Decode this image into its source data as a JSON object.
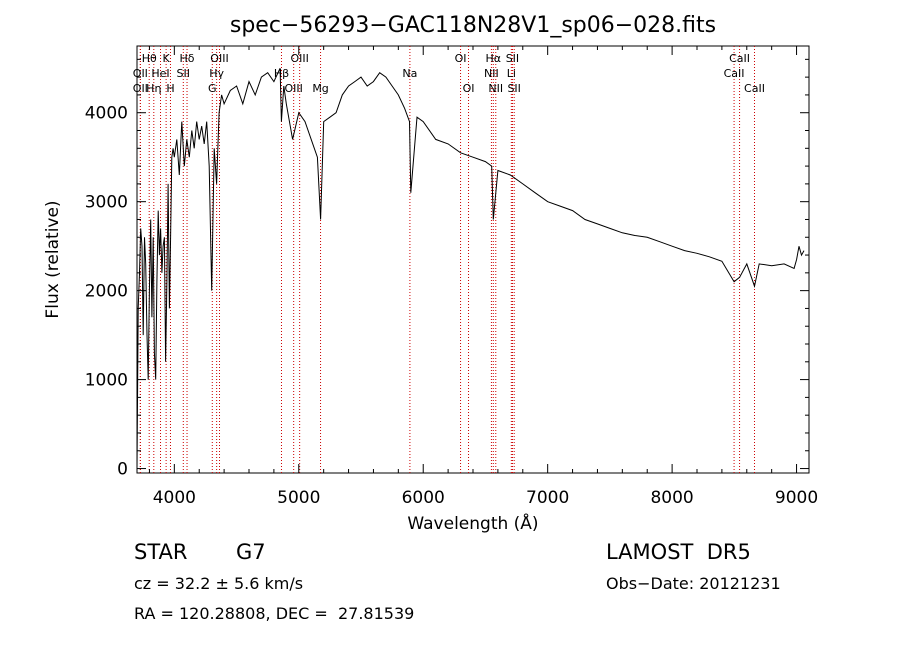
{
  "chart_data": {
    "type": "line",
    "title": "spec−56293−GAC118N28V1_sp06−028.fits",
    "xlabel": "Wavelength (Å)",
    "ylabel": "Flux (relative)",
    "xlim": [
      3700,
      9100
    ],
    "ylim": [
      -50,
      4750
    ],
    "xticks": [
      4000,
      5000,
      6000,
      7000,
      8000,
      9000
    ],
    "yticks": [
      0,
      1000,
      2000,
      3000,
      4000
    ],
    "grid": false,
    "line_color": "#000000",
    "marker_color": "#cc0000",
    "series": [
      {
        "x": [
          3700,
          3710,
          3720,
          3730,
          3740,
          3750,
          3760,
          3770,
          3780,
          3790,
          3800,
          3810,
          3820,
          3830,
          3840,
          3850,
          3860,
          3870,
          3880,
          3890,
          3900,
          3910,
          3920,
          3930,
          3940,
          3950,
          3960,
          3970,
          3980,
          3990,
          4000,
          4020,
          4040,
          4060,
          4080,
          4100,
          4120,
          4140,
          4160,
          4180,
          4200,
          4220,
          4240,
          4260,
          4280,
          4300,
          4320,
          4340,
          4360,
          4380,
          4400,
          4450,
          4500,
          4550,
          4600,
          4650,
          4700,
          4750,
          4800,
          4850,
          4860,
          4880,
          4900,
          4950,
          5000,
          5050,
          5100,
          5150,
          5175,
          5200,
          5250,
          5300,
          5350,
          5400,
          5450,
          5500,
          5550,
          5600,
          5650,
          5700,
          5750,
          5800,
          5850,
          5890,
          5900,
          5950,
          6000,
          6100,
          6200,
          6300,
          6400,
          6500,
          6550,
          6563,
          6600,
          6700,
          6800,
          6900,
          7000,
          7100,
          7200,
          7300,
          7400,
          7500,
          7600,
          7700,
          7800,
          7900,
          8000,
          8100,
          8200,
          8300,
          8400,
          8498,
          8542,
          8600,
          8662,
          8700,
          8800,
          8900,
          8980,
          9000,
          9020,
          9040,
          9060
        ],
        "y": [
          0,
          1800,
          2200,
          2700,
          2500,
          1500,
          2600,
          2300,
          1500,
          1000,
          2000,
          2800,
          1700,
          2600,
          1300,
          1000,
          2100,
          2900,
          2400,
          2700,
          2200,
          2500,
          2600,
          1200,
          2100,
          3200,
          1800,
          2600,
          3500,
          3600,
          3500,
          3700,
          3300,
          3900,
          3400,
          3700,
          3500,
          3800,
          3600,
          3900,
          3700,
          3850,
          3650,
          3900,
          3400,
          2000,
          3600,
          3200,
          4000,
          4200,
          4100,
          4250,
          4300,
          4100,
          4350,
          4200,
          4400,
          4450,
          4350,
          4500,
          3900,
          4300,
          4100,
          3700,
          4000,
          3900,
          3700,
          3500,
          2800,
          3900,
          3950,
          4000,
          4200,
          4300,
          4350,
          4400,
          4300,
          4350,
          4450,
          4400,
          4300,
          4200,
          4050,
          3900,
          3100,
          3950,
          3900,
          3700,
          3650,
          3550,
          3500,
          3450,
          3400,
          2800,
          3350,
          3300,
          3200,
          3100,
          3000,
          2950,
          2900,
          2800,
          2750,
          2700,
          2650,
          2620,
          2600,
          2550,
          2500,
          2450,
          2420,
          2380,
          2330,
          2100,
          2150,
          2300,
          2050,
          2300,
          2280,
          2300,
          2250,
          2350,
          2500,
          2400,
          2450
        ]
      }
    ],
    "lines": [
      {
        "name": "Hθ",
        "wavelength": 3798,
        "row": 0
      },
      {
        "name": "OII",
        "wavelength": 3727,
        "row": 1
      },
      {
        "name": "OII",
        "wavelength": 3727,
        "row": 2
      },
      {
        "name": "K",
        "wavelength": 3934,
        "row": 0
      },
      {
        "name": "HeI",
        "wavelength": 3889,
        "row": 1
      },
      {
        "name": "Hη",
        "wavelength": 3835,
        "row": 2
      },
      {
        "name": "Hδ",
        "wavelength": 4102,
        "row": 0
      },
      {
        "name": "SII",
        "wavelength": 4072,
        "row": 1
      },
      {
        "name": "H",
        "wavelength": 3969,
        "row": 2
      },
      {
        "name": "OIII",
        "wavelength": 4363,
        "row": 0
      },
      {
        "name": "Hγ",
        "wavelength": 4340,
        "row": 1
      },
      {
        "name": "G",
        "wavelength": 4305,
        "row": 2
      },
      {
        "name": "OIII",
        "wavelength": 5007,
        "row": 0
      },
      {
        "name": "Hβ",
        "wavelength": 4861,
        "row": 1
      },
      {
        "name": "OIII",
        "wavelength": 4959,
        "row": 2
      },
      {
        "name": "Mg",
        "wavelength": 5175,
        "row": 2
      },
      {
        "name": "Na",
        "wavelength": 5893,
        "row": 1
      },
      {
        "name": "OI",
        "wavelength": 6300,
        "row": 0
      },
      {
        "name": "OI",
        "wavelength": 6364,
        "row": 2
      },
      {
        "name": "Hα",
        "wavelength": 6563,
        "row": 0
      },
      {
        "name": "NII",
        "wavelength": 6548,
        "row": 1
      },
      {
        "name": "NII",
        "wavelength": 6583,
        "row": 2
      },
      {
        "name": "SII",
        "wavelength": 6717,
        "row": 0
      },
      {
        "name": "Li",
        "wavelength": 6708,
        "row": 1
      },
      {
        "name": "SII",
        "wavelength": 6731,
        "row": 2
      },
      {
        "name": "CaII",
        "wavelength": 8542,
        "row": 0
      },
      {
        "name": "CaII",
        "wavelength": 8498,
        "row": 1
      },
      {
        "name": "CaII",
        "wavelength": 8662,
        "row": 2
      }
    ]
  },
  "info": {
    "class_label": "STAR",
    "subclass": "G7",
    "survey": "LAMOST  DR5",
    "cz": "cz = 32.2 ± 5.6 km/s",
    "obs_date": "Obs−Date: 20121231",
    "coords": "RA = 120.28808, DEC =  27.81539"
  }
}
